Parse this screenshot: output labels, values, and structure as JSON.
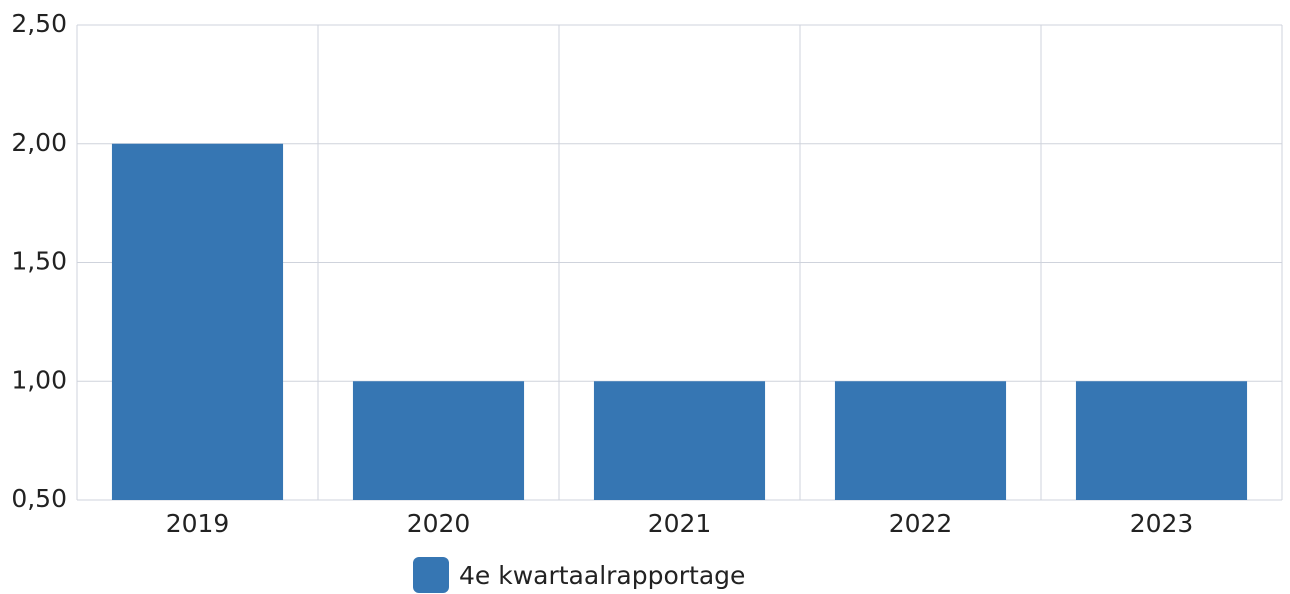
{
  "chart_data": {
    "type": "bar",
    "categories": [
      "2019",
      "2020",
      "2021",
      "2022",
      "2023"
    ],
    "series": [
      {
        "name": "4e kwartaalrapportage",
        "color": "#3676b3",
        "values": [
          2,
          1,
          1,
          1,
          1
        ]
      }
    ],
    "ylim": [
      0.5,
      2.5
    ],
    "yticks": [
      {
        "value": 0.5,
        "label": "0,50"
      },
      {
        "value": 1,
        "label": "1,00"
      },
      {
        "value": 1.5,
        "label": "1,50"
      },
      {
        "value": 2,
        "label": "2,00"
      },
      {
        "value": 2.5,
        "label": "2,50"
      }
    ],
    "grid": true,
    "legend": "bottom"
  }
}
